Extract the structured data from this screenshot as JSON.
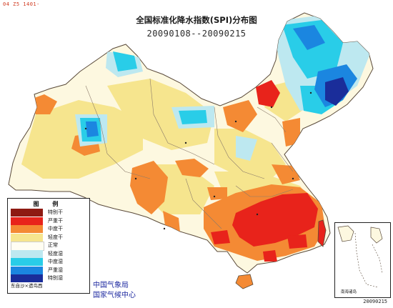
{
  "corner_code": "04 Z5 1401-",
  "title": {
    "line1": "全国标准化降水指数(SPI)分布图",
    "line2": "20090108--20090215"
  },
  "legend": {
    "title": "图 例",
    "items": [
      {
        "label": "特别干",
        "color": "#8e1a12"
      },
      {
        "label": "严重干",
        "color": "#e8231b"
      },
      {
        "label": "中度干",
        "color": "#f48a34"
      },
      {
        "label": "轻度干",
        "color": "#f6e58e"
      },
      {
        "label": "正常",
        "color": "#fffdf2"
      },
      {
        "label": "轻度湿",
        "color": "#bde8f0"
      },
      {
        "label": "中度湿",
        "color": "#29cde8"
      },
      {
        "label": "严重湿",
        "color": "#1b86e0"
      },
      {
        "label": "特别湿",
        "color": "#1a2d9a"
      }
    ],
    "footer": "东自沙×遗鸟西"
  },
  "agency": {
    "line1": "中国气象局",
    "line2": "国家气候中心"
  },
  "inset": {
    "label": "南海诸岛"
  },
  "bottom_code": "20090215",
  "colors": {
    "normal": "#fdf8e0",
    "light_dry": "#f6e58e",
    "moderate_dry": "#f48a34",
    "severe_dry": "#e8231b",
    "light_wet": "#bde8f0",
    "moderate_wet": "#29cde8",
    "severe_wet": "#1b86e0",
    "extreme_wet": "#1a2d9a",
    "border": "#5a4a3a"
  }
}
